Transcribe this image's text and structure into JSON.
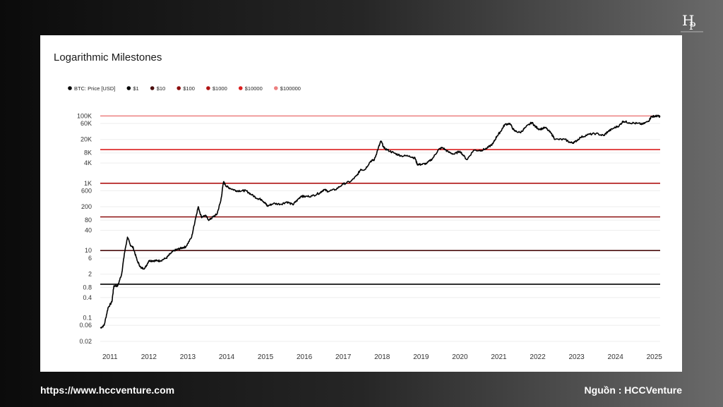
{
  "logo": {
    "icon": "hcc-monogram-logo"
  },
  "footer": {
    "url": "https://www.hccventure.com",
    "source": "Nguồn : HCCVenture"
  },
  "chart_data": {
    "type": "line",
    "title": "Logarithmic Milestones",
    "xlabel": "",
    "ylabel": "",
    "yscale": "log",
    "ylim": [
      0.02,
      200000
    ],
    "xlim": [
      2010.75,
      2025.15
    ],
    "grid": true,
    "legend_position": "top-left",
    "x_ticks": [
      2011,
      2012,
      2013,
      2014,
      2015,
      2016,
      2017,
      2018,
      2019,
      2020,
      2021,
      2022,
      2023,
      2024,
      2025
    ],
    "x_tick_labels": [
      "2011",
      "2012",
      "2013",
      "2014",
      "2015",
      "2016",
      "2017",
      "2018",
      "2019",
      "2020",
      "2021",
      "2022",
      "2023",
      "2024",
      "2025"
    ],
    "y_ticks": [
      100000,
      60000,
      20000,
      8000,
      4000,
      1000,
      600,
      200,
      80,
      40,
      10,
      6,
      2,
      0.8,
      0.4,
      0.1,
      0.06,
      0.02
    ],
    "y_tick_labels": [
      "100K",
      "60K",
      "20K",
      "8K",
      "4K",
      "1K",
      "600",
      "200",
      "80",
      "40",
      "10",
      "6",
      "2",
      "0.8",
      "0.4",
      "0.1",
      "0.06",
      "0.02"
    ],
    "legend": [
      {
        "label": "BTC: Price [USD]",
        "color": "#000000"
      },
      {
        "label": "$1",
        "color": "#000000"
      },
      {
        "label": "$10",
        "color": "#4a0d0d"
      },
      {
        "label": "$100",
        "color": "#8b0e0e"
      },
      {
        "label": "$1000",
        "color": "#b01313"
      },
      {
        "label": "$10000",
        "color": "#dc1f1f"
      },
      {
        "label": "$100000",
        "color": "#ec8080"
      }
    ],
    "milestones": [
      {
        "value": 1,
        "color": "#000000"
      },
      {
        "value": 10,
        "color": "#4a0d0d"
      },
      {
        "value": 100,
        "color": "#8b0e0e"
      },
      {
        "value": 1000,
        "color": "#b01313"
      },
      {
        "value": 10000,
        "color": "#dc1f1f"
      },
      {
        "value": 100000,
        "color": "#ec8080"
      }
    ],
    "series": [
      {
        "name": "BTC: Price [USD]",
        "color": "#000000",
        "points": [
          [
            2010.75,
            0.05
          ],
          [
            2010.85,
            0.06
          ],
          [
            2010.95,
            0.2
          ],
          [
            2011.05,
            0.3
          ],
          [
            2011.1,
            0.9
          ],
          [
            2011.2,
            0.9
          ],
          [
            2011.3,
            2
          ],
          [
            2011.37,
            8
          ],
          [
            2011.45,
            25
          ],
          [
            2011.52,
            15
          ],
          [
            2011.6,
            12
          ],
          [
            2011.7,
            5
          ],
          [
            2011.8,
            3
          ],
          [
            2011.9,
            3
          ],
          [
            2012.0,
            5
          ],
          [
            2012.1,
            5
          ],
          [
            2012.2,
            5
          ],
          [
            2012.3,
            5
          ],
          [
            2012.45,
            6
          ],
          [
            2012.55,
            8
          ],
          [
            2012.65,
            10
          ],
          [
            2012.75,
            11
          ],
          [
            2012.85,
            12
          ],
          [
            2012.95,
            13
          ],
          [
            2013.1,
            25
          ],
          [
            2013.2,
            90
          ],
          [
            2013.27,
            200
          ],
          [
            2013.35,
            100
          ],
          [
            2013.45,
            110
          ],
          [
            2013.55,
            80
          ],
          [
            2013.65,
            100
          ],
          [
            2013.75,
            120
          ],
          [
            2013.85,
            300
          ],
          [
            2013.92,
            1100
          ],
          [
            2014.0,
            800
          ],
          [
            2014.1,
            700
          ],
          [
            2014.25,
            600
          ],
          [
            2014.4,
            600
          ],
          [
            2014.5,
            600
          ],
          [
            2014.65,
            450
          ],
          [
            2014.8,
            350
          ],
          [
            2014.9,
            330
          ],
          [
            2015.0,
            250
          ],
          [
            2015.05,
            210
          ],
          [
            2015.2,
            250
          ],
          [
            2015.4,
            240
          ],
          [
            2015.55,
            280
          ],
          [
            2015.7,
            230
          ],
          [
            2015.8,
            300
          ],
          [
            2015.92,
            420
          ],
          [
            2016.0,
            400
          ],
          [
            2016.2,
            420
          ],
          [
            2016.4,
            520
          ],
          [
            2016.5,
            650
          ],
          [
            2016.6,
            580
          ],
          [
            2016.8,
            650
          ],
          [
            2017.0,
            950
          ],
          [
            2017.2,
            1150
          ],
          [
            2017.35,
            1700
          ],
          [
            2017.45,
            2600
          ],
          [
            2017.55,
            2500
          ],
          [
            2017.7,
            4500
          ],
          [
            2017.8,
            5000
          ],
          [
            2017.9,
            11000
          ],
          [
            2017.97,
            18000
          ],
          [
            2018.05,
            11000
          ],
          [
            2018.2,
            9000
          ],
          [
            2018.35,
            7500
          ],
          [
            2018.5,
            6500
          ],
          [
            2018.7,
            6500
          ],
          [
            2018.85,
            5500
          ],
          [
            2018.9,
            3700
          ],
          [
            2019.0,
            3600
          ],
          [
            2019.15,
            3900
          ],
          [
            2019.3,
            5500
          ],
          [
            2019.45,
            10000
          ],
          [
            2019.55,
            11500
          ],
          [
            2019.7,
            8500
          ],
          [
            2019.85,
            7300
          ],
          [
            2020.0,
            9000
          ],
          [
            2020.18,
            5000
          ],
          [
            2020.35,
            9500
          ],
          [
            2020.55,
            9500
          ],
          [
            2020.7,
            11000
          ],
          [
            2020.85,
            15000
          ],
          [
            2020.95,
            25000
          ],
          [
            2021.05,
            35000
          ],
          [
            2021.15,
            55000
          ],
          [
            2021.28,
            60000
          ],
          [
            2021.4,
            36000
          ],
          [
            2021.55,
            32000
          ],
          [
            2021.7,
            47000
          ],
          [
            2021.85,
            64000
          ],
          [
            2021.95,
            47000
          ],
          [
            2022.05,
            40000
          ],
          [
            2022.2,
            45000
          ],
          [
            2022.35,
            30000
          ],
          [
            2022.45,
            20000
          ],
          [
            2022.7,
            20000
          ],
          [
            2022.85,
            16000
          ],
          [
            2022.95,
            16500
          ],
          [
            2023.1,
            23000
          ],
          [
            2023.3,
            28000
          ],
          [
            2023.5,
            30000
          ],
          [
            2023.7,
            26000
          ],
          [
            2023.8,
            34000
          ],
          [
            2023.95,
            43000
          ],
          [
            2024.1,
            52000
          ],
          [
            2024.2,
            70000
          ],
          [
            2024.35,
            63000
          ],
          [
            2024.55,
            60000
          ],
          [
            2024.7,
            57000
          ],
          [
            2024.85,
            70000
          ],
          [
            2024.92,
            95000
          ],
          [
            2025.0,
            98000
          ],
          [
            2025.08,
            100000
          ],
          [
            2025.15,
            96000
          ]
        ]
      }
    ]
  }
}
